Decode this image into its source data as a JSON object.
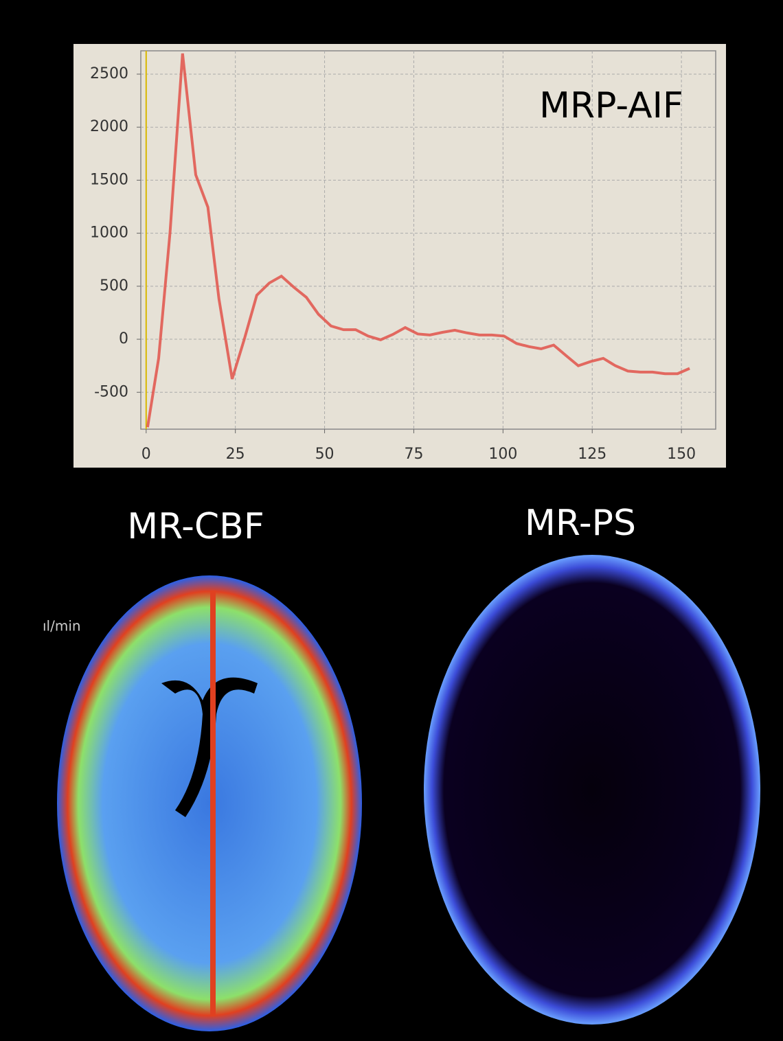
{
  "chart_data": {
    "type": "line",
    "annotation": "MRP-AIF",
    "color": "#e0524a",
    "grid": true,
    "x": [
      0.4,
      3.5,
      6.7,
      10.2,
      13.9,
      17.3,
      20.4,
      24.1,
      27.5,
      31,
      34.5,
      37.9,
      41.4,
      44.9,
      48.3,
      51.8,
      55.3,
      58.7,
      62.2,
      65.7,
      69.1,
      72.6,
      76.1,
      79.5,
      83,
      86.5,
      89.9,
      93.4,
      96.9,
      100.3,
      103.8,
      107.3,
      110.7,
      114.2,
      117.7,
      121.1,
      124.6,
      128.1,
      131.5,
      135,
      138.5,
      141.9,
      145.4,
      148.9,
      152.3
    ],
    "values": [
      -830,
      -180,
      1010,
      2695,
      1550,
      1245,
      380,
      -375,
      0,
      415,
      530,
      595,
      490,
      395,
      235,
      125,
      90,
      90,
      30,
      -5,
      45,
      110,
      50,
      40,
      65,
      85,
      60,
      40,
      40,
      30,
      -40,
      -70,
      -90,
      -55,
      -155,
      -250,
      -210,
      -180,
      -250,
      -300,
      -310,
      -310,
      -325,
      -325,
      -275
    ],
    "xlim": [
      -1.5,
      159.6
    ],
    "ylim": [
      -848,
      2720
    ],
    "xticks": [
      0,
      25,
      50,
      75,
      100,
      125,
      150
    ],
    "yticks": [
      -500,
      0,
      500,
      1000,
      1500,
      2000,
      2500
    ]
  },
  "images": {
    "left": {
      "title": "MR-CBF",
      "unit": "ıl/min"
    },
    "right": {
      "title": "MR-PS"
    }
  }
}
